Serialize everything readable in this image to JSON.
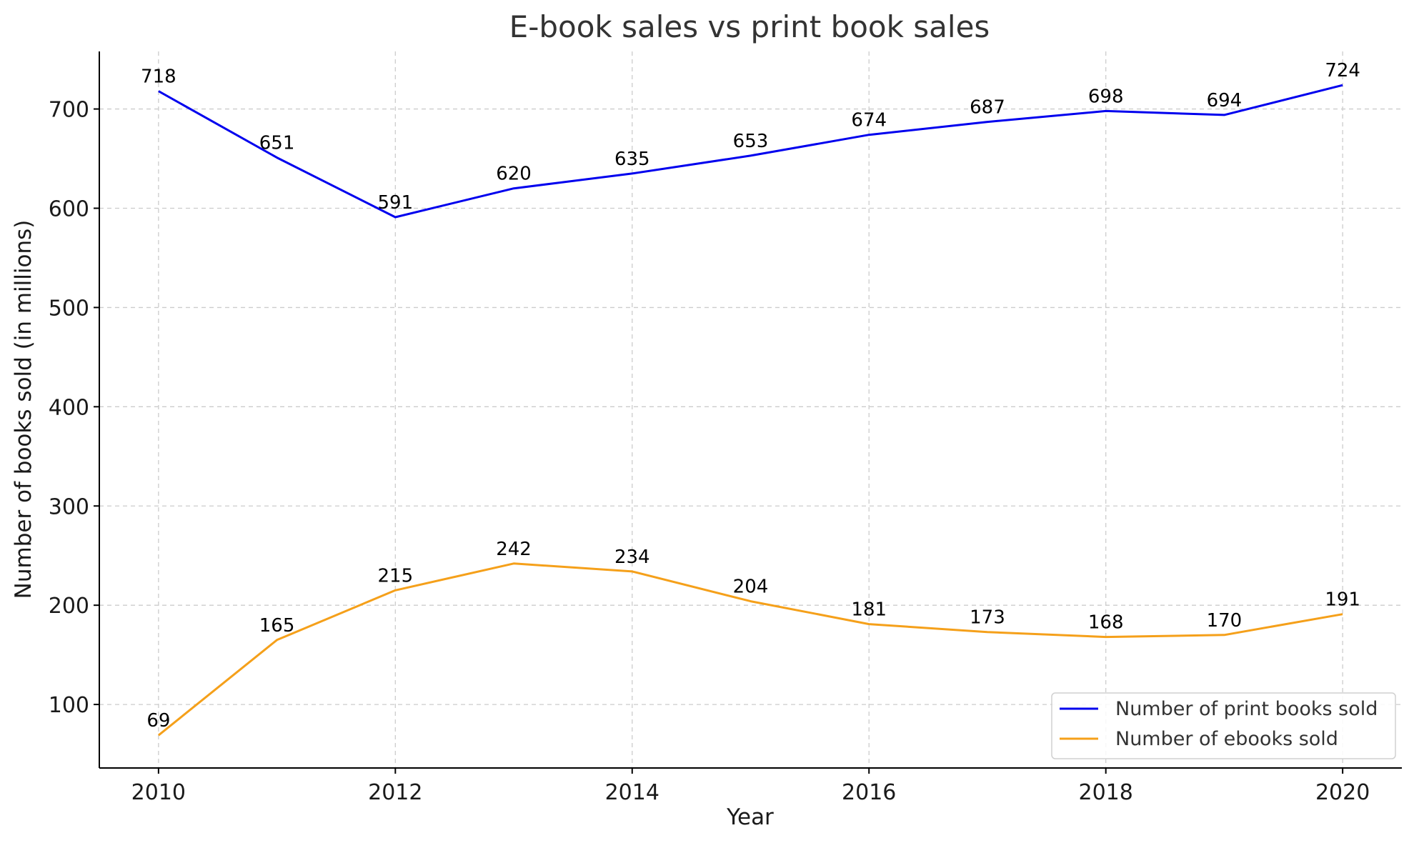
{
  "chart_data": {
    "type": "line",
    "title": "E-book sales vs print book sales",
    "xlabel": "Year",
    "ylabel": "Number of books sold (in millions)",
    "x": [
      2010,
      2011,
      2012,
      2013,
      2014,
      2015,
      2016,
      2017,
      2018,
      2019,
      2020
    ],
    "xlim": [
      2009.5,
      2020.5
    ],
    "ylim": [
      36,
      758
    ],
    "xticks": [
      "2010",
      "2012",
      "2014",
      "2016",
      "2018",
      "2020"
    ],
    "yticks": [
      "100",
      "200",
      "300",
      "400",
      "500",
      "600",
      "700"
    ],
    "grid": true,
    "legend_position": "bottom-right",
    "series": [
      {
        "name": "Number of print books sold",
        "color": "#0000ee",
        "values": [
          718,
          651,
          591,
          620,
          635,
          653,
          674,
          687,
          698,
          694,
          724
        ]
      },
      {
        "name": "Number of ebooks sold",
        "color": "#f5a01a",
        "values": [
          69,
          165,
          215,
          242,
          234,
          204,
          181,
          173,
          168,
          170,
          191
        ]
      }
    ]
  }
}
